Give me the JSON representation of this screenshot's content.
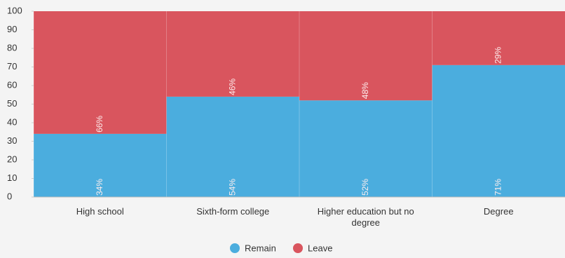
{
  "chart_data": {
    "type": "stacked_bar",
    "categories": [
      "High school",
      "Sixth-form college",
      "Higher education but no degree",
      "Degree"
    ],
    "series": [
      {
        "name": "Remain",
        "color": "#4badde",
        "values": [
          34,
          54,
          52,
          71
        ],
        "value_labels": [
          "34%",
          "54%",
          "52%",
          "71%"
        ]
      },
      {
        "name": "Leave",
        "color": "#d9555e",
        "values": [
          66,
          46,
          48,
          29
        ],
        "value_labels": [
          "66%",
          "46%",
          "48%",
          "29%"
        ]
      }
    ],
    "ylim": [
      0,
      100
    ],
    "yticks": [
      0,
      10,
      20,
      30,
      40,
      50,
      60,
      70,
      80,
      90,
      100
    ],
    "legend": "bottom"
  }
}
